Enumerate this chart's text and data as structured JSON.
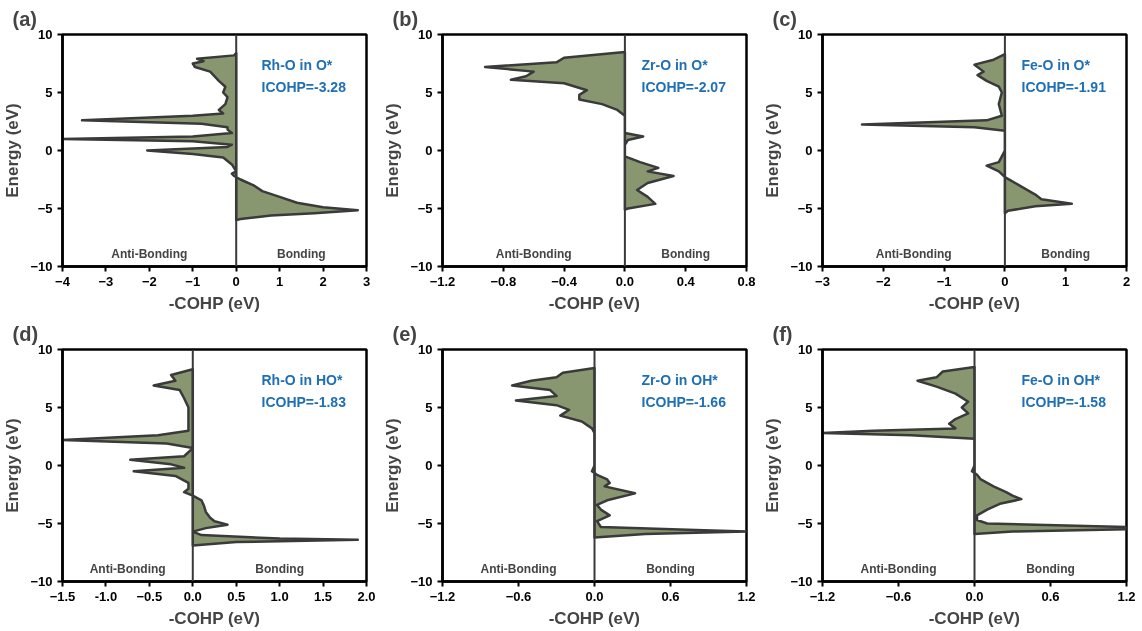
{
  "chart_data": [
    {
      "type": "area",
      "title": "(a)",
      "xlabel": "-COHP (eV)",
      "ylabel": "Energy (eV)",
      "orientation": "horizontal",
      "annotations": [
        "Rh-O in O*",
        "ICOHP=-3.28",
        "Anti-Bonding",
        "Bonding"
      ],
      "x": [
        8.4,
        8.2,
        7.9,
        7.7,
        7.5,
        7.2,
        6.8,
        6.0,
        5.5,
        5.0,
        4.6,
        4.0,
        3.5,
        3.2,
        3.0,
        2.6,
        2.3,
        2.0,
        1.8,
        1.5,
        1.2,
        1.0,
        0.8,
        0.5,
        0.3,
        0.0,
        -0.3,
        -0.6,
        -1.2,
        -1.5,
        -1.8,
        -2.0,
        -2.2,
        -2.5,
        -3.0,
        -3.5,
        -4.0,
        -4.5,
        -4.9,
        -5.15,
        -5.4,
        -5.6,
        -5.9,
        -6.0
      ],
      "series": [
        {
          "color": "#7b8c60",
          "values": [
            0,
            -0.05,
            -0.9,
            -0.75,
            -1.0,
            -0.95,
            -0.6,
            -0.4,
            -0.25,
            -0.3,
            -0.2,
            -0.25,
            -0.4,
            -0.3,
            -1.0,
            -3.55,
            -0.8,
            -0.2,
            -0.2,
            -0.1,
            -1.0,
            -4.0,
            -1.0,
            -0.1,
            -0.2,
            -2.05,
            -1.0,
            -0.3,
            -0.1,
            -0.05,
            0,
            -0.1,
            -0.05,
            0.1,
            0.4,
            0.6,
            1.0,
            1.4,
            2.0,
            2.8,
            1.8,
            0.8,
            0.1,
            0
          ]
        }
      ],
      "xlim": [
        -4,
        3
      ],
      "xticks": [
        -4,
        -3,
        -2,
        -1,
        0,
        1,
        2,
        3
      ],
      "ylim": [
        -10,
        10
      ],
      "yticks": [
        -10,
        -5,
        0,
        5,
        10
      ],
      "ref_lines": [
        {
          "axis": "x",
          "value": 0,
          "label": null
        }
      ]
    },
    {
      "type": "area",
      "title": "(b)",
      "xlabel": "-COHP (eV)",
      "ylabel": "Energy (eV)",
      "orientation": "horizontal",
      "annotations": [
        "Zr-O in O*",
        "ICOHP=-2.07",
        "Anti-Bonding",
        "Bonding"
      ],
      "x": [
        8.5,
        8.0,
        7.6,
        7.2,
        6.8,
        6.4,
        6.1,
        5.8,
        5.2,
        4.8,
        4.4,
        4.0,
        3.5,
        3.0,
        1.5,
        1.2,
        0.9,
        0.5,
        -0.5,
        -1.0,
        -1.5,
        -1.8,
        -2.2,
        -2.8,
        -3.4,
        -4.0,
        -4.6,
        -5.0,
        -5.1
      ],
      "series": [
        {
          "color": "#7b8c60",
          "values": [
            0,
            -0.4,
            -0.45,
            -0.92,
            -0.6,
            -0.65,
            -0.75,
            -0.4,
            -0.25,
            -0.3,
            -0.3,
            -0.15,
            -0.05,
            0,
            0,
            0.12,
            0.02,
            0,
            0,
            0.1,
            0.22,
            0.15,
            0.32,
            0.15,
            0.08,
            0.15,
            0.2,
            0.02,
            0
          ]
        }
      ],
      "xlim": [
        -1.2,
        0.8
      ],
      "xticks": [
        -1.2,
        -0.8,
        -0.4,
        {
          "value": 0,
          "label": "0.0"
        },
        0.4,
        0.8
      ],
      "ylim": [
        -10,
        10
      ],
      "yticks": [
        -10,
        -5,
        0,
        5,
        10
      ],
      "ref_lines": [
        {
          "axis": "x",
          "value": 0,
          "label": null
        }
      ]
    },
    {
      "type": "area",
      "title": "(c)",
      "xlabel": "-COHP (eV)",
      "ylabel": "Energy (eV)",
      "orientation": "horizontal",
      "annotations": [
        "Fe-O in O*",
        "ICOHP=-1.91",
        "Anti-Bonding",
        "Bonding"
      ],
      "x": [
        8.3,
        7.8,
        7.4,
        6.8,
        6.5,
        6.0,
        5.5,
        5.0,
        4.0,
        3.0,
        2.6,
        2.25,
        2.0,
        1.7,
        0.0,
        -0.5,
        -1.0,
        -1.3,
        -1.8,
        -2.3,
        -2.6,
        -3.2,
        -3.8,
        -4.2,
        -4.6,
        -4.8,
        -5.2,
        -5.4
      ],
      "series": [
        {
          "color": "#7b8c60",
          "values": [
            0,
            -0.2,
            -0.5,
            -0.35,
            -0.45,
            -0.3,
            -0.1,
            -0.05,
            -0.1,
            -0.05,
            -0.3,
            -2.35,
            -0.5,
            0,
            0,
            -0.05,
            -0.1,
            -0.3,
            -0.1,
            0,
            0.1,
            0.3,
            0.5,
            0.6,
            1.1,
            0.5,
            0.05,
            0
          ]
        }
      ],
      "xlim": [
        -3,
        2
      ],
      "xticks": [
        -3,
        -2,
        -1,
        0,
        1,
        2
      ],
      "ylim": [
        -10,
        10
      ],
      "yticks": [
        -10,
        -5,
        0,
        5,
        10
      ],
      "ref_lines": [
        {
          "axis": "x",
          "value": 0,
          "label": null
        }
      ]
    },
    {
      "type": "area",
      "title": "(d)",
      "xlabel": "-COHP (eV)",
      "ylabel": "Energy (eV)",
      "orientation": "horizontal",
      "annotations": [
        "Rh-O in HO*",
        "ICOHP=-1.83",
        "Anti-Bonding",
        "Bonding"
      ],
      "x": [
        8.3,
        7.8,
        7.3,
        6.9,
        6.5,
        5.8,
        5.0,
        4.0,
        3.0,
        2.6,
        2.2,
        1.9,
        1.5,
        0.8,
        0.5,
        0.1,
        -0.2,
        -0.5,
        -0.9,
        -1.5,
        -2.0,
        -2.3,
        -2.6,
        -3.0,
        -3.5,
        -4.0,
        -4.5,
        -4.8,
        -5.1,
        -5.4,
        -5.7,
        -6.0,
        -6.3,
        -6.4,
        -6.6,
        -6.9
      ],
      "series": [
        {
          "color": "#7b8c60",
          "values": [
            0,
            -0.25,
            -0.2,
            -0.45,
            -0.15,
            -0.1,
            -0.05,
            -0.05,
            -0.05,
            -0.4,
            -1.5,
            -0.3,
            0,
            -0.1,
            -0.72,
            -0.25,
            -0.1,
            -0.68,
            -0.2,
            -0.05,
            -0.05,
            -0.1,
            0,
            0.1,
            0.13,
            0.15,
            0.2,
            0.25,
            0.4,
            0.15,
            0,
            0.1,
            1.0,
            1.9,
            0.5,
            0
          ]
        }
      ],
      "xlim": [
        -1.5,
        2.0
      ],
      "xticks": [
        -1.5,
        {
          "value": -1,
          "label": "-1.0"
        },
        -0.5,
        {
          "value": 0,
          "label": "0.0"
        },
        0.5,
        {
          "value": 1,
          "label": "1.0"
        },
        1.5,
        {
          "value": 2,
          "label": "2.0"
        }
      ],
      "ylim": [
        -10,
        10
      ],
      "yticks": [
        -10,
        -5,
        0,
        5,
        10
      ],
      "ref_lines": [
        {
          "axis": "x",
          "value": 0,
          "label": null
        }
      ]
    },
    {
      "type": "area",
      "title": "(e)",
      "xlabel": "-COHP (eV)",
      "ylabel": "Energy (eV)",
      "orientation": "horizontal",
      "annotations": [
        "Zr-O in OH*",
        "ICOHP=-1.66",
        "Anti-Bonding",
        "Bonding"
      ],
      "x": [
        8.4,
        8.0,
        7.6,
        7.3,
        6.9,
        6.5,
        6.0,
        5.6,
        5.2,
        4.8,
        4.3,
        3.8,
        3.2,
        2.8,
        0.0,
        -0.5,
        -0.8,
        -1.2,
        -1.5,
        -1.8,
        -2.4,
        -3.0,
        -3.4,
        -3.8,
        -4.3,
        -4.8,
        -5.3,
        -5.55,
        -5.7,
        -5.9,
        -6.2
      ],
      "series": [
        {
          "color": "#7b8c60",
          "values": [
            0,
            -0.25,
            -0.3,
            -0.5,
            -0.65,
            -0.35,
            -0.3,
            -0.62,
            -0.3,
            -0.2,
            -0.27,
            -0.1,
            -0.02,
            0,
            0,
            -0.02,
            0.02,
            0.1,
            0.12,
            0.08,
            0.32,
            0.1,
            0.02,
            0.05,
            0.12,
            0.02,
            0.05,
            0.8,
            1.2,
            0.4,
            0
          ]
        }
      ],
      "xlim": [
        -1.2,
        1.2
      ],
      "xticks": [
        -1.2,
        -0.6,
        {
          "value": 0,
          "label": "0.0"
        },
        0.6,
        1.2
      ],
      "ylim": [
        -10,
        10
      ],
      "yticks": [
        -10,
        -5,
        0,
        5,
        10
      ],
      "ref_lines": [
        {
          "axis": "x",
          "value": 0,
          "label": null
        }
      ]
    },
    {
      "type": "area",
      "title": "(f)",
      "xlabel": "-COHP (eV)",
      "ylabel": "Energy (eV)",
      "orientation": "horizontal",
      "annotations": [
        "Fe-O in OH*",
        "ICOHP=-1.58",
        "Anti-Bonding",
        "Bonding"
      ],
      "x": [
        8.5,
        8.1,
        7.6,
        7.3,
        6.8,
        6.2,
        5.5,
        5.0,
        4.5,
        4.0,
        3.6,
        3.2,
        3.0,
        2.8,
        2.6,
        2.3,
        0.0,
        -0.5,
        -0.8,
        -1.2,
        -1.8,
        -2.3,
        -2.6,
        -2.9,
        -3.3,
        -3.8,
        -4.3,
        -4.7,
        -5.0,
        -5.3,
        -5.5,
        -5.7,
        -5.9
      ],
      "series": [
        {
          "color": "#7b8c60",
          "values": [
            0,
            -0.25,
            -0.3,
            -0.45,
            -0.3,
            -0.15,
            -0.05,
            -0.1,
            -0.05,
            -0.15,
            -0.2,
            -0.15,
            -0.8,
            -1.2,
            -0.5,
            0,
            0,
            -0.02,
            0.02,
            0.05,
            0.15,
            0.25,
            0.3,
            0.37,
            0.2,
            0.1,
            0.02,
            0.02,
            0.1,
            1.2,
            1.2,
            0.3,
            0
          ]
        }
      ],
      "xlim": [
        -1.2,
        1.2
      ],
      "xticks": [
        -1.2,
        -0.6,
        {
          "value": 0,
          "label": "0.0"
        },
        0.6,
        1.2
      ],
      "ylim": [
        -10,
        10
      ],
      "yticks": [
        -10,
        -5,
        0,
        5,
        10
      ],
      "ref_lines": [
        {
          "axis": "x",
          "value": 0,
          "label": null
        }
      ]
    }
  ]
}
